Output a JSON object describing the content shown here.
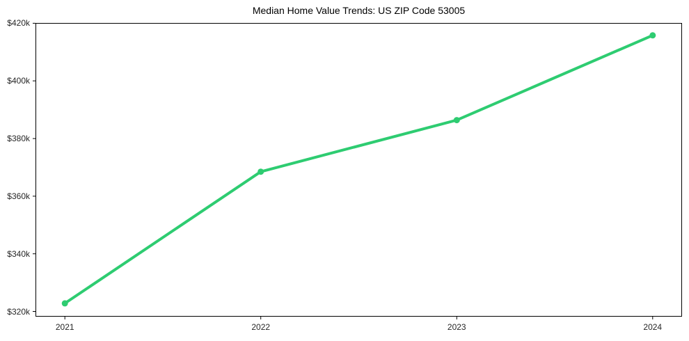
{
  "chart_data": {
    "type": "line",
    "title": "Median Home Value Trends: US ZIP Code 53005",
    "xlabel": "",
    "ylabel": "",
    "x": [
      2021,
      2022,
      2023,
      2024
    ],
    "x_tick_labels": [
      "2021",
      "2022",
      "2023",
      "2024"
    ],
    "series": [
      {
        "name": "Median Home Value",
        "values": [
          322800,
          368500,
          386400,
          415800
        ]
      }
    ],
    "y_tick_values": [
      320000,
      340000,
      360000,
      380000,
      400000,
      420000
    ],
    "y_tick_labels": [
      "$320k",
      "$340k",
      "$360k",
      "$380k",
      "$400k",
      "$420k"
    ],
    "ylim": [
      318200,
      420100
    ],
    "xlim": [
      2020.85,
      2024.15
    ],
    "grid": false,
    "legend_position": "none",
    "line_color": "#2ecc71",
    "marker": "circle",
    "background_color": "#ffffff",
    "axis_color": "#000000",
    "tick_label_color": "#262626"
  }
}
